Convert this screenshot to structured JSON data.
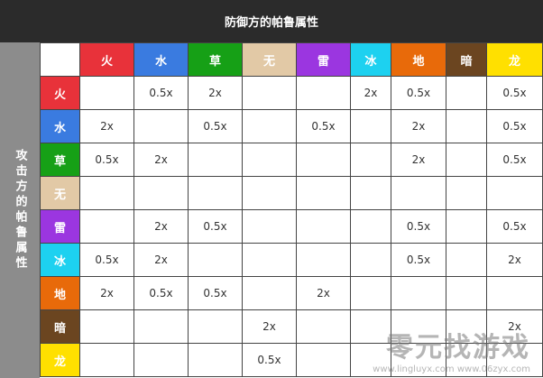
{
  "header": {
    "title": "防御方的帕鲁属性"
  },
  "side_label": "攻击方的帕鲁属性",
  "table": {
    "columns": [
      "火",
      "水",
      "草",
      "无",
      "雷",
      "冰",
      "地",
      "暗",
      "龙"
    ],
    "rows": [
      "火",
      "水",
      "草",
      "无",
      "雷",
      "冰",
      "地",
      "暗",
      "龙"
    ],
    "colors": [
      "#e8323a",
      "#3a7be0",
      "#16a016",
      "#e2c9a6",
      "#9b36e0",
      "#1dd1f0",
      "#e86a0a",
      "#6b4520",
      "#ffe000"
    ],
    "cells": [
      [
        null,
        "0.5x",
        "2x",
        null,
        null,
        "2x",
        "0.5x",
        null,
        "0.5x"
      ],
      [
        "2x",
        null,
        "0.5x",
        null,
        "0.5x",
        null,
        "2x",
        null,
        "0.5x"
      ],
      [
        "0.5x",
        "2x",
        null,
        null,
        null,
        null,
        "2x",
        null,
        "0.5x"
      ],
      [
        null,
        null,
        null,
        null,
        null,
        null,
        null,
        null,
        null
      ],
      [
        null,
        "2x",
        "0.5x",
        null,
        null,
        null,
        "0.5x",
        null,
        "0.5x"
      ],
      [
        "0.5x",
        "2x",
        null,
        null,
        null,
        null,
        "0.5x",
        null,
        "2x"
      ],
      [
        "2x",
        "0.5x",
        "0.5x",
        null,
        "2x",
        null,
        null,
        null,
        null
      ],
      [
        null,
        null,
        null,
        "2x",
        null,
        null,
        null,
        null,
        "2x"
      ],
      [
        null,
        null,
        null,
        "0.5x",
        null,
        null,
        null,
        null,
        null
      ]
    ]
  },
  "watermark": {
    "logo": "零元找游戏",
    "url": "www.lingluyx.com  www.06zyx.com"
  }
}
